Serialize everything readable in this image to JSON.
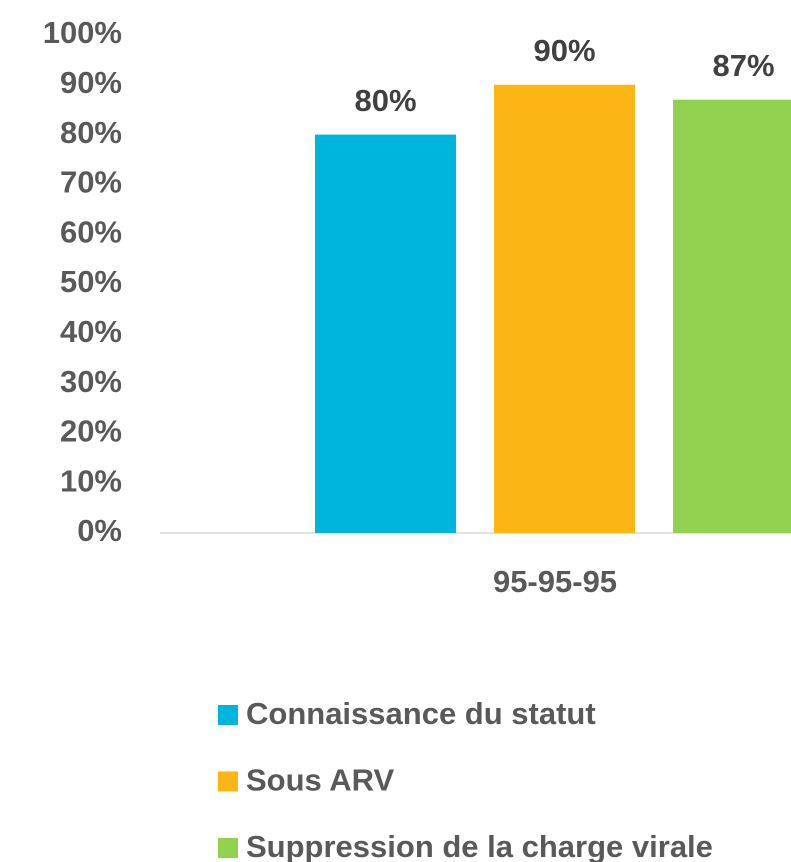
{
  "chart_data": {
    "type": "bar",
    "categories": [
      "95-95-95"
    ],
    "series": [
      {
        "name": "Connaissance du statut",
        "color": "#00b5dd",
        "values": [
          80
        ],
        "value_labels": [
          "80%"
        ]
      },
      {
        "name": "Sous ARV",
        "color": "#fbb616",
        "values": [
          90
        ],
        "value_labels": [
          "90%"
        ]
      },
      {
        "name": "Suppression de la charge virale",
        "color": "#92d050",
        "values": [
          87
        ],
        "value_labels": [
          "87%"
        ]
      }
    ],
    "ylim": [
      0,
      100
    ],
    "yticks": [
      {
        "value": 0,
        "label": "0%"
      },
      {
        "value": 10,
        "label": "10%"
      },
      {
        "value": 20,
        "label": "20%"
      },
      {
        "value": 30,
        "label": "30%"
      },
      {
        "value": 40,
        "label": "40%"
      },
      {
        "value": 50,
        "label": "50%"
      },
      {
        "value": 60,
        "label": "60%"
      },
      {
        "value": 70,
        "label": "70%"
      },
      {
        "value": 80,
        "label": "80%"
      },
      {
        "value": 90,
        "label": "90%"
      },
      {
        "value": 100,
        "label": "100%"
      }
    ],
    "grid": false,
    "legend": "bottom"
  }
}
